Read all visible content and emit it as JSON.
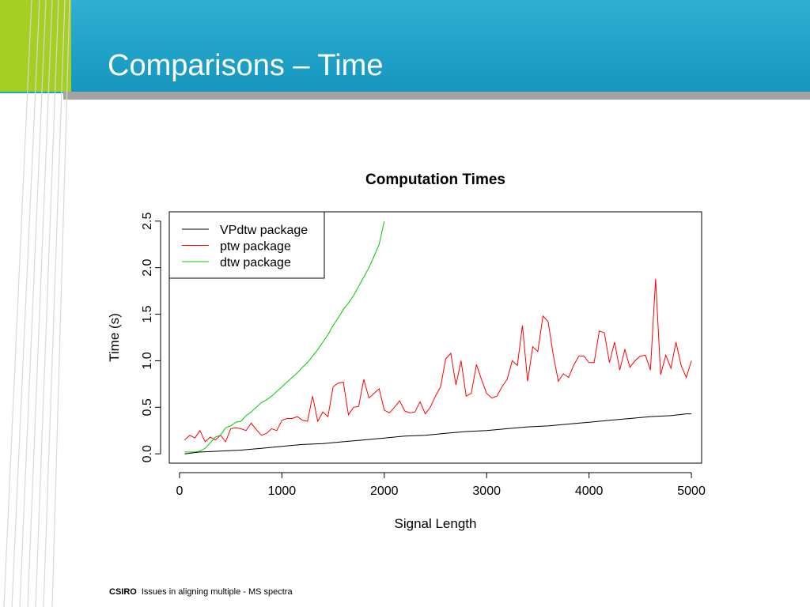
{
  "slide": {
    "title": "Comparisons – Time",
    "footer_brand": "CSIRO",
    "footer_text": "Issues in aligning multiple - MS spectra"
  },
  "colors": {
    "header_blue": "#1aa3c9",
    "accent_green": "#a6cf23",
    "divider_grey": "#a3a3a3"
  },
  "chart_data": {
    "type": "line",
    "title": "Computation Times",
    "xlabel": "Signal Length",
    "ylabel": "Time (s)",
    "xlim": [
      -100,
      5100
    ],
    "ylim": [
      -0.1,
      2.6
    ],
    "xticks": [
      0,
      1000,
      2000,
      3000,
      4000,
      5000
    ],
    "yticks": [
      0.0,
      0.5,
      1.0,
      1.5,
      2.0,
      2.5
    ],
    "legend": "top-left",
    "series": [
      {
        "name": "VPdtw package",
        "color": "#000000",
        "x": [
          50,
          200,
          400,
          600,
          800,
          1000,
          1200,
          1400,
          1600,
          1800,
          2000,
          2200,
          2400,
          2600,
          2800,
          3000,
          3200,
          3400,
          3600,
          3800,
          4000,
          4200,
          4400,
          4600,
          4800,
          4950,
          5000
        ],
        "y": [
          0.0,
          0.02,
          0.03,
          0.04,
          0.06,
          0.08,
          0.1,
          0.11,
          0.13,
          0.15,
          0.17,
          0.19,
          0.2,
          0.22,
          0.24,
          0.25,
          0.27,
          0.29,
          0.3,
          0.32,
          0.34,
          0.36,
          0.38,
          0.4,
          0.41,
          0.43,
          0.43
        ]
      },
      {
        "name": "ptw package",
        "color": "#ff0000",
        "x": [
          50,
          100,
          150,
          200,
          250,
          300,
          350,
          400,
          450,
          500,
          550,
          600,
          650,
          700,
          750,
          800,
          850,
          900,
          950,
          1000,
          1050,
          1100,
          1150,
          1200,
          1250,
          1300,
          1350,
          1400,
          1450,
          1500,
          1550,
          1600,
          1650,
          1700,
          1750,
          1800,
          1850,
          1900,
          1950,
          2000,
          2050,
          2100,
          2150,
          2200,
          2250,
          2300,
          2350,
          2400,
          2450,
          2500,
          2550,
          2600,
          2650,
          2700,
          2750,
          2800,
          2850,
          2900,
          2950,
          3000,
          3050,
          3100,
          3150,
          3200,
          3250,
          3300,
          3350,
          3400,
          3450,
          3500,
          3550,
          3600,
          3650,
          3700,
          3750,
          3800,
          3850,
          3900,
          3950,
          4000,
          4050,
          4100,
          4150,
          4200,
          4250,
          4300,
          4350,
          4400,
          4450,
          4500,
          4550,
          4600,
          4650,
          4700,
          4750,
          4800,
          4850,
          4900,
          4950,
          5000
        ],
        "y": [
          0.15,
          0.2,
          0.17,
          0.25,
          0.13,
          0.18,
          0.15,
          0.2,
          0.13,
          0.27,
          0.28,
          0.27,
          0.25,
          0.33,
          0.26,
          0.2,
          0.22,
          0.27,
          0.25,
          0.36,
          0.38,
          0.38,
          0.4,
          0.36,
          0.35,
          0.62,
          0.35,
          0.45,
          0.4,
          0.72,
          0.76,
          0.77,
          0.42,
          0.5,
          0.51,
          0.8,
          0.6,
          0.65,
          0.7,
          0.47,
          0.44,
          0.5,
          0.57,
          0.46,
          0.44,
          0.45,
          0.56,
          0.43,
          0.5,
          0.62,
          0.72,
          1.02,
          1.08,
          0.74,
          1.0,
          0.62,
          0.65,
          0.96,
          0.8,
          0.65,
          0.6,
          0.62,
          0.72,
          0.8,
          1.0,
          0.95,
          1.38,
          0.78,
          1.15,
          1.1,
          1.48,
          1.42,
          1.07,
          0.78,
          0.86,
          0.82,
          0.95,
          1.05,
          1.05,
          0.98,
          0.98,
          1.32,
          1.3,
          0.98,
          1.2,
          0.9,
          1.12,
          0.93,
          1.0,
          1.05,
          1.06,
          0.9,
          1.88,
          0.85,
          1.06,
          0.92,
          1.2,
          0.95,
          0.82,
          1.0
        ]
      },
      {
        "name": "dtw package",
        "color": "#00cc00",
        "x": [
          50,
          100,
          150,
          200,
          250,
          300,
          350,
          400,
          450,
          500,
          550,
          600,
          650,
          700,
          750,
          800,
          850,
          900,
          950,
          1000,
          1050,
          1100,
          1150,
          1200,
          1250,
          1300,
          1350,
          1400,
          1450,
          1500,
          1550,
          1600,
          1650,
          1700,
          1750,
          1800,
          1850,
          1900,
          1950,
          2000
        ],
        "y": [
          0.02,
          0.02,
          0.02,
          0.03,
          0.06,
          0.12,
          0.18,
          0.2,
          0.28,
          0.3,
          0.34,
          0.35,
          0.41,
          0.45,
          0.5,
          0.55,
          0.58,
          0.62,
          0.67,
          0.72,
          0.77,
          0.82,
          0.87,
          0.93,
          0.98,
          1.05,
          1.12,
          1.2,
          1.28,
          1.38,
          1.46,
          1.55,
          1.62,
          1.7,
          1.8,
          1.9,
          2.0,
          2.12,
          2.25,
          2.5
        ]
      }
    ]
  }
}
